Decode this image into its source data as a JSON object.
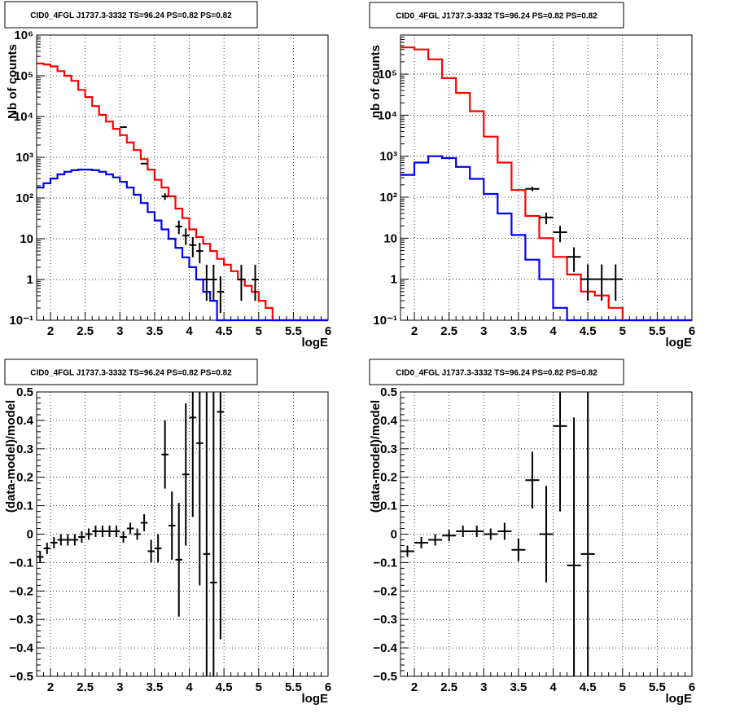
{
  "colors": {
    "data": "#000000",
    "model_total": "#ff0000",
    "model_source": "#0000ff",
    "grid": "#000000"
  },
  "chart_data": [
    {
      "type": "line",
      "title": "CID0_4FGL J1737.3-3332 TS=96.24 PS=0.82 PS=0.82",
      "xlabel": "logE",
      "ylabel": "Nb of counts",
      "xlim": [
        1.8,
        6.0
      ],
      "ylim": [
        0.1,
        1000000
      ],
      "yscale": "log",
      "grid": true,
      "x_ticks": [
        2,
        2.5,
        3,
        3.5,
        4,
        4.5,
        5,
        5.5,
        6
      ],
      "x_tick_labels": [
        "2",
        "2.5",
        "3",
        "3.5",
        "4",
        "4.5",
        "5",
        "5.5",
        "6"
      ],
      "y_ticks": [
        0.1,
        1,
        10,
        100,
        1000,
        10000,
        100000,
        1000000
      ],
      "y_tick_labels": [
        "10⁻¹",
        "1",
        "10",
        "10²",
        "10³",
        "10⁴",
        "10⁵",
        "10⁶"
      ],
      "bin_edges": [
        1.8,
        1.9,
        2.0,
        2.1,
        2.2,
        2.3,
        2.4,
        2.5,
        2.6,
        2.7,
        2.8,
        2.9,
        3.0,
        3.1,
        3.2,
        3.3,
        3.4,
        3.5,
        3.6,
        3.7,
        3.8,
        3.9,
        4.0,
        4.1,
        4.2,
        4.3,
        4.4,
        4.5,
        4.6,
        4.7,
        4.8,
        4.9,
        5.0,
        5.1,
        5.2,
        5.3,
        5.4,
        5.5,
        5.6,
        5.7,
        5.8,
        5.9,
        6.0
      ],
      "series": [
        {
          "style": "red_step",
          "values": [
            200000,
            190000,
            170000,
            130000,
            100000,
            75000,
            45000,
            30000,
            18000,
            11000,
            7500,
            5000,
            3500,
            2300,
            1500,
            900,
            500,
            280,
            180,
            110,
            55,
            32,
            17,
            11,
            7.5,
            5,
            3.2,
            2.3,
            1.6,
            1,
            0.7,
            0.5,
            0.3,
            0.2,
            0.1,
            0.1,
            0.1,
            0.1,
            0.1,
            0.1,
            0.1,
            0.1
          ]
        },
        {
          "style": "blue_step",
          "values": [
            180,
            230,
            300,
            380,
            440,
            480,
            500,
            500,
            480,
            440,
            380,
            320,
            250,
            180,
            120,
            75,
            45,
            28,
            17,
            10,
            6,
            3.5,
            2,
            1,
            0.5,
            0.3,
            0.1,
            0.1,
            0.1,
            0.1,
            0.1,
            0.1,
            0.1,
            0.1,
            0.1,
            0.1,
            0.1,
            0.1,
            0.1,
            0.1,
            0.1,
            0.1
          ]
        },
        {
          "style": "data_points",
          "points": [
            {
              "x": 3.05,
              "y": 5500,
              "ex": 0.05
            },
            {
              "x": 3.35,
              "y": 700,
              "ex": 0.05
            },
            {
              "x": 3.65,
              "y": 110,
              "ex": 0.05,
              "elo": 90,
              "ehi": 130
            },
            {
              "x": 3.85,
              "y": 20,
              "ex": 0.05,
              "elo": 13,
              "ehi": 28
            },
            {
              "x": 3.95,
              "y": 12,
              "ex": 0.05,
              "elo": 7,
              "ehi": 18
            },
            {
              "x": 4.05,
              "y": 7,
              "ex": 0.05,
              "elo": 3.5,
              "ehi": 11
            },
            {
              "x": 4.15,
              "y": 5,
              "ex": 0.05,
              "elo": 2.5,
              "ehi": 8
            },
            {
              "x": 4.25,
              "y": 1,
              "ex": 0.05,
              "elo": 0.3,
              "ehi": 2.3
            },
            {
              "x": 4.35,
              "y": 1,
              "ex": 0.05,
              "elo": 0.3,
              "ehi": 2.3
            },
            {
              "x": 4.45,
              "y": 0.5,
              "ex": 0.05,
              "elo": 0.15,
              "ehi": 1.2
            },
            {
              "x": 4.75,
              "y": 1,
              "ex": 0.05,
              "elo": 0.3,
              "ehi": 2.3
            },
            {
              "x": 4.95,
              "y": 1,
              "ex": 0.05,
              "elo": 0.3,
              "ehi": 2.3
            }
          ]
        }
      ]
    },
    {
      "type": "line",
      "title": "CID0_4FGL J1737.3-3332 TS=96.24 PS=0.82 PS=0.82",
      "xlabel": "logE",
      "ylabel": "nb of counts",
      "xlim": [
        1.8,
        6.0
      ],
      "ylim": [
        0.1,
        900000
      ],
      "yscale": "log",
      "grid": true,
      "x_ticks": [
        2,
        2.5,
        3,
        3.5,
        4,
        4.5,
        5,
        5.5,
        6
      ],
      "x_tick_labels": [
        "2",
        "2.5",
        "3",
        "3.5",
        "4",
        "4.5",
        "5",
        "5.5",
        "6"
      ],
      "y_ticks": [
        0.1,
        1,
        10,
        100,
        1000,
        10000,
        100000
      ],
      "y_tick_labels": [
        "10⁻¹",
        "1",
        "10",
        "10²",
        "10³",
        "10⁴",
        "10⁵"
      ],
      "bin_edges": [
        1.8,
        2.0,
        2.2,
        2.4,
        2.6,
        2.8,
        3.0,
        3.2,
        3.4,
        3.6,
        3.8,
        4.0,
        4.2,
        4.4,
        4.6,
        4.8,
        5.0,
        5.2,
        5.4,
        5.6,
        5.8,
        6.0
      ],
      "series": [
        {
          "style": "red_step",
          "values": [
            450000,
            400000,
            230000,
            80000,
            35000,
            12500,
            3000,
            700,
            150,
            35,
            10,
            3.5,
            1.3,
            0.5,
            0.4,
            0.2,
            0.1,
            0.1,
            0.1,
            0.1,
            0.1
          ]
        },
        {
          "style": "blue_step",
          "values": [
            350,
            700,
            1000,
            900,
            550,
            280,
            120,
            40,
            12,
            3,
            1,
            0.2,
            0.1,
            0.1,
            0.1,
            0.1,
            0.1,
            0.1,
            0.1,
            0.1,
            0.1
          ]
        },
        {
          "style": "data_points",
          "points": [
            {
              "x": 3.7,
              "y": 160,
              "ex": 0.1,
              "elo": 140,
              "ehi": 180
            },
            {
              "x": 3.9,
              "y": 32,
              "ex": 0.1,
              "elo": 22,
              "ehi": 42
            },
            {
              "x": 4.1,
              "y": 14,
              "ex": 0.1,
              "elo": 8,
              "ehi": 20
            },
            {
              "x": 4.3,
              "y": 3.5,
              "ex": 0.1,
              "elo": 1.5,
              "ehi": 6
            },
            {
              "x": 4.5,
              "y": 1,
              "ex": 0.1,
              "elo": 0.3,
              "ehi": 2.3
            },
            {
              "x": 4.7,
              "y": 1,
              "ex": 0.1,
              "elo": 0.3,
              "ehi": 2.3
            },
            {
              "x": 4.9,
              "y": 1,
              "ex": 0.1,
              "elo": 0.3,
              "ehi": 2.3
            }
          ]
        }
      ]
    },
    {
      "type": "scatter",
      "title": "CID0_4FGL J1737.3-3332 TS=96.24 PS=0.82 PS=0.82",
      "xlabel": "logE",
      "ylabel": "(data-model)/model",
      "xlim": [
        1.8,
        6.0
      ],
      "ylim": [
        -0.5,
        0.5
      ],
      "yscale": "linear",
      "grid": true,
      "x_ticks": [
        2,
        2.5,
        3,
        3.5,
        4,
        4.5,
        5,
        5.5,
        6
      ],
      "x_tick_labels": [
        "2",
        "2.5",
        "3",
        "3.5",
        "4",
        "4.5",
        "5",
        "5.5",
        "6"
      ],
      "y_ticks": [
        -0.5,
        -0.4,
        -0.3,
        -0.2,
        -0.1,
        0,
        0.1,
        0.2,
        0.3,
        0.4,
        0.5
      ],
      "y_tick_labels": [
        "−0.5",
        "−0.4",
        "−0.3",
        "−0.2",
        "−0.1",
        "0",
        "0.1",
        "0.2",
        "0.3",
        "0.4",
        "0.5"
      ],
      "series": [
        {
          "style": "data_points",
          "points": [
            {
              "x": 1.85,
              "y": -0.08,
              "ex": 0.05,
              "e": 0.02
            },
            {
              "x": 1.95,
              "y": -0.05,
              "ex": 0.05,
              "e": 0.02
            },
            {
              "x": 2.05,
              "y": -0.03,
              "ex": 0.05,
              "e": 0.02
            },
            {
              "x": 2.15,
              "y": -0.02,
              "ex": 0.05,
              "e": 0.02
            },
            {
              "x": 2.25,
              "y": -0.02,
              "ex": 0.05,
              "e": 0.02
            },
            {
              "x": 2.35,
              "y": -0.02,
              "ex": 0.05,
              "e": 0.02
            },
            {
              "x": 2.45,
              "y": -0.01,
              "ex": 0.05,
              "e": 0.02
            },
            {
              "x": 2.55,
              "y": 0.0,
              "ex": 0.05,
              "e": 0.02
            },
            {
              "x": 2.65,
              "y": 0.01,
              "ex": 0.05,
              "e": 0.02
            },
            {
              "x": 2.75,
              "y": 0.01,
              "ex": 0.05,
              "e": 0.02
            },
            {
              "x": 2.85,
              "y": 0.01,
              "ex": 0.05,
              "e": 0.02
            },
            {
              "x": 2.95,
              "y": 0.01,
              "ex": 0.05,
              "e": 0.02
            },
            {
              "x": 3.05,
              "y": -0.01,
              "ex": 0.05,
              "e": 0.02
            },
            {
              "x": 3.15,
              "y": 0.02,
              "ex": 0.05,
              "e": 0.02
            },
            {
              "x": 3.25,
              "y": 0.0,
              "ex": 0.05,
              "e": 0.02
            },
            {
              "x": 3.35,
              "y": 0.04,
              "ex": 0.05,
              "e": 0.03
            },
            {
              "x": 3.45,
              "y": -0.06,
              "ex": 0.05,
              "e": 0.04
            },
            {
              "x": 3.55,
              "y": -0.05,
              "ex": 0.05,
              "e": 0.05
            },
            {
              "x": 3.65,
              "y": 0.28,
              "ex": 0.05,
              "e": 0.12
            },
            {
              "x": 3.75,
              "y": 0.03,
              "ex": 0.05,
              "e": 0.12
            },
            {
              "x": 3.85,
              "y": -0.09,
              "ex": 0.05,
              "e": 0.2
            },
            {
              "x": 3.95,
              "y": 0.21,
              "ex": 0.05,
              "e": 0.25
            },
            {
              "x": 4.05,
              "y": 0.41,
              "ex": 0.05,
              "e": 0.35
            },
            {
              "x": 4.15,
              "y": 0.32,
              "ex": 0.05,
              "e": 0.5
            },
            {
              "x": 4.25,
              "y": -0.07,
              "ex": 0.05,
              "e": 0.6
            },
            {
              "x": 4.35,
              "y": -0.17,
              "ex": 0.05,
              "e": 0.7
            },
            {
              "x": 4.45,
              "y": 0.43,
              "ex": 0.05,
              "e": 0.8
            }
          ]
        }
      ]
    },
    {
      "type": "scatter",
      "title": "CID0_4FGL J1737.3-3332 TS=96.24 PS=0.82 PS=0.82",
      "xlabel": "logE",
      "ylabel": "(data-model)/model",
      "xlim": [
        1.8,
        6.0
      ],
      "ylim": [
        -0.5,
        0.5
      ],
      "yscale": "linear",
      "grid": true,
      "x_ticks": [
        2,
        2.5,
        3,
        3.5,
        4,
        4.5,
        5,
        5.5,
        6
      ],
      "x_tick_labels": [
        "2",
        "2.5",
        "3",
        "3.5",
        "4",
        "4.5",
        "5",
        "5.5",
        "6"
      ],
      "y_ticks": [
        -0.5,
        -0.4,
        -0.3,
        -0.2,
        -0.1,
        0,
        0.1,
        0.2,
        0.3,
        0.4,
        0.5
      ],
      "y_tick_labels": [
        "−0.5",
        "−0.4",
        "−0.3",
        "−0.2",
        "−0.1",
        "0",
        "0.1",
        "0.2",
        "0.3",
        "0.4",
        "0.5"
      ],
      "series": [
        {
          "style": "data_points",
          "points": [
            {
              "x": 1.9,
              "y": -0.06,
              "ex": 0.1,
              "e": 0.02
            },
            {
              "x": 2.1,
              "y": -0.03,
              "ex": 0.1,
              "e": 0.02
            },
            {
              "x": 2.3,
              "y": -0.02,
              "ex": 0.1,
              "e": 0.02
            },
            {
              "x": 2.5,
              "y": -0.005,
              "ex": 0.1,
              "e": 0.02
            },
            {
              "x": 2.7,
              "y": 0.01,
              "ex": 0.1,
              "e": 0.02
            },
            {
              "x": 2.9,
              "y": 0.01,
              "ex": 0.1,
              "e": 0.02
            },
            {
              "x": 3.1,
              "y": 0.0,
              "ex": 0.1,
              "e": 0.02
            },
            {
              "x": 3.3,
              "y": 0.01,
              "ex": 0.1,
              "e": 0.03
            },
            {
              "x": 3.5,
              "y": -0.055,
              "ex": 0.1,
              "e": 0.04
            },
            {
              "x": 3.7,
              "y": 0.19,
              "ex": 0.1,
              "e": 0.1
            },
            {
              "x": 3.9,
              "y": 0.0,
              "ex": 0.1,
              "e": 0.17
            },
            {
              "x": 4.1,
              "y": 0.38,
              "ex": 0.1,
              "e": 0.3
            },
            {
              "x": 4.3,
              "y": -0.11,
              "ex": 0.1,
              "e": 0.52
            },
            {
              "x": 4.5,
              "y": -0.07,
              "ex": 0.1,
              "e": 0.8
            }
          ]
        }
      ]
    }
  ]
}
